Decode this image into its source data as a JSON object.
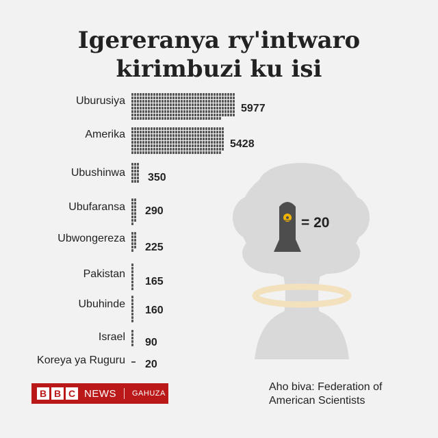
{
  "chart_data": {
    "type": "bar",
    "title_lines": [
      "Igereranya ry'intwaro",
      "kirimbuzi ku isi"
    ],
    "categories": [
      "Uburusiya",
      "Amerika",
      "Ubushinwa",
      "Ubufaransa",
      "Ubwongereza",
      "Pakistan",
      "Ubuhinde",
      "Israel",
      "Koreya ya Ruguru"
    ],
    "values": [
      5977,
      5428,
      350,
      290,
      225,
      165,
      160,
      90,
      20
    ],
    "value_labels": [
      "5977",
      "5428",
      "350",
      "290",
      "225",
      "165",
      "160",
      "90",
      "20"
    ],
    "unit_per_icon": 20,
    "legend_text": "= 20",
    "bar_color": "#555555",
    "cloud_color": "#d9d9d9",
    "ring_color": "#f3e0bd",
    "symbol_color": "#f0b400"
  },
  "source_lines": [
    "Aho biva: Federation of",
    "American Scientists"
  ],
  "logo": {
    "letters": [
      "B",
      "B",
      "C"
    ],
    "news": "NEWS",
    "service": "GAHUZA",
    "color": "#bb1919"
  }
}
